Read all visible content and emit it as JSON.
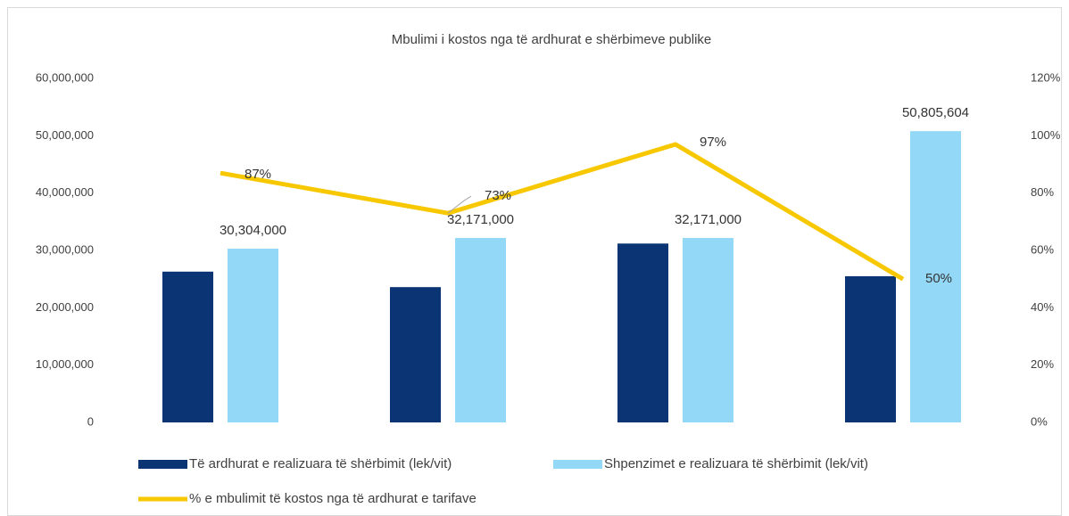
{
  "chart_data": {
    "type": "bar_line",
    "title": "Mbulimi i kostos nga të ardhurat e shërbimeve publike",
    "categories": [
      null,
      null,
      null,
      null
    ],
    "series": [
      {
        "name": "Të ardhurat e realizuara të shërbimit (lek/vit)",
        "color": "#0b3475",
        "type": "bar",
        "values": [
          26300000,
          23600000,
          31200000,
          25500000
        ]
      },
      {
        "name": "Shpenzimet e realizuara të shërbimit (lek/vit)",
        "color": "#93d8f7",
        "type": "bar",
        "values": [
          30304000,
          32171000,
          32171000,
          50805604
        ],
        "value_labels": [
          "30,304,000",
          "32,171,000",
          "32,171,000",
          "50,805,604"
        ]
      },
      {
        "name": "% e mbulimit të kostos nga të ardhurat e tarifave",
        "color": "#f7c800",
        "type": "line",
        "axis": "y2",
        "values": [
          87,
          73,
          97,
          50
        ],
        "value_labels": [
          "87%",
          "73%",
          "97%",
          "50%"
        ]
      }
    ],
    "ylim": [
      0,
      60000000
    ],
    "yticks": [
      0,
      {
        "value": 10000000,
        "label": "10,000,000"
      },
      {
        "value": 20000000,
        "label": "20,000,000"
      },
      {
        "value": 30000000,
        "label": "30,000,000"
      },
      {
        "value": 40000000,
        "label": "40,000,000"
      },
      {
        "value": 50000000,
        "label": "50,000,000"
      },
      {
        "value": 60000000,
        "label": "60,000,000"
      }
    ],
    "y2lim": [
      0,
      120
    ],
    "y2ticks": [
      {
        "value": 0,
        "label": "0%"
      },
      {
        "value": 20,
        "label": "20%"
      },
      {
        "value": 40,
        "label": "40%"
      },
      {
        "value": 60,
        "label": "60%"
      },
      {
        "value": 80,
        "label": "80%"
      },
      {
        "value": 100,
        "label": "100%"
      },
      {
        "value": 120,
        "label": "120%"
      }
    ],
    "legend": "bottom",
    "grid": false
  }
}
